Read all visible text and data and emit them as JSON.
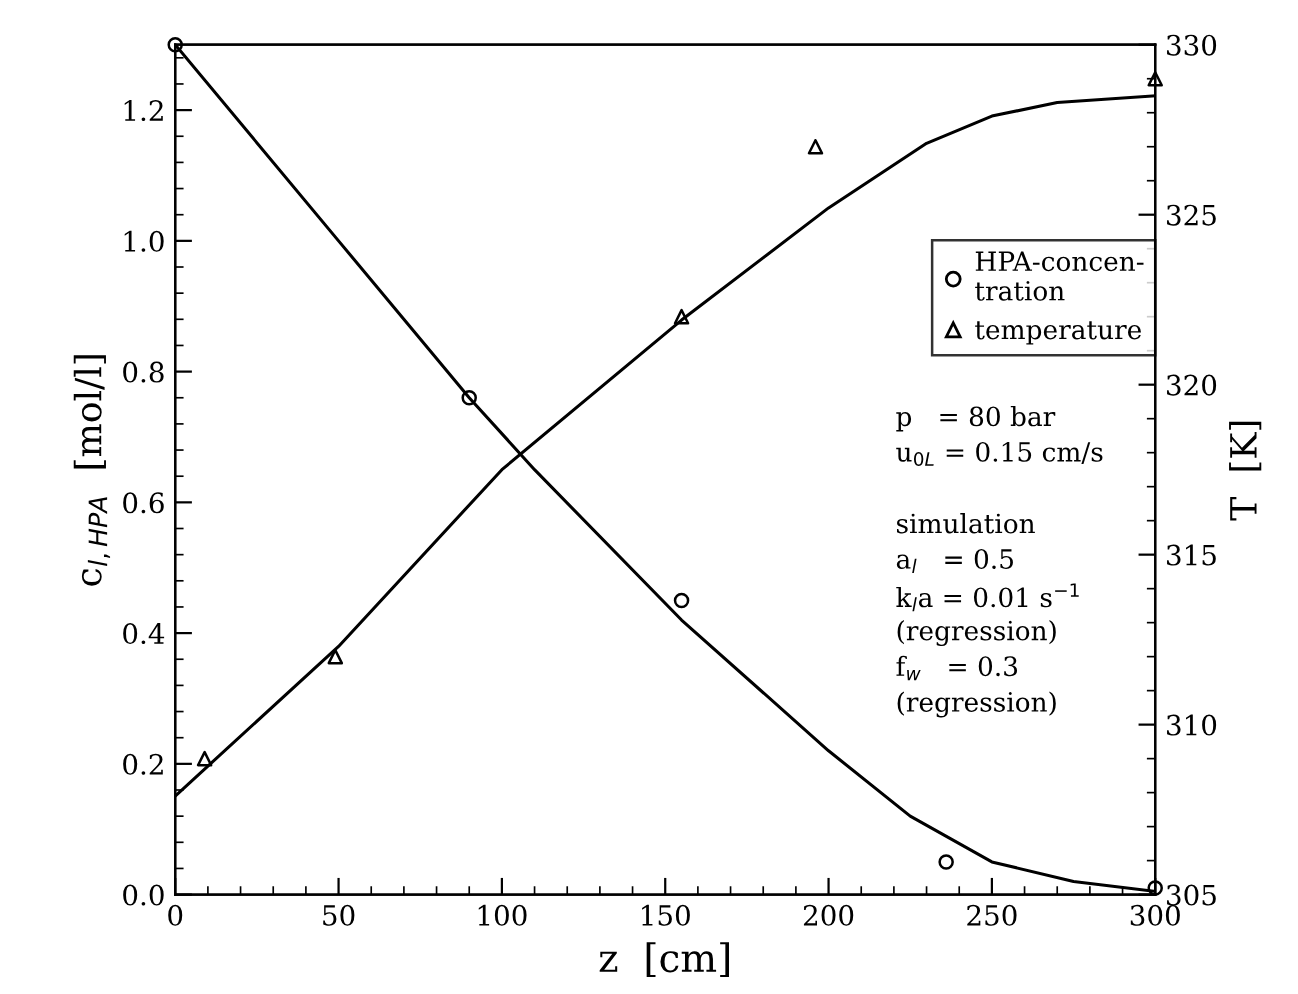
{
  "chart_data": {
    "type": "line",
    "xlabel": "z  [cm]",
    "ylabel": "c$_{l,HPA}$  [mol/l]",
    "y2label": "T  [K]",
    "xlim": [
      0,
      300
    ],
    "xticks": [
      0,
      50,
      100,
      150,
      200,
      250,
      300
    ],
    "ylim": [
      0,
      1.3
    ],
    "yticks": [
      {
        "value": 0,
        "label": "0.0"
      },
      0.2,
      0.4,
      0.6,
      0.8,
      {
        "value": 1,
        "label": "1.0"
      },
      1.2
    ],
    "y2lim": [
      305,
      330
    ],
    "y2ticks": [
      305,
      310,
      315,
      320,
      325,
      330
    ],
    "grid": false,
    "legend": "right",
    "series": [
      {
        "name": "HPA-concen-\ntration",
        "type": "scatter",
        "marker": "circle",
        "color": "#000000",
        "x": [
          0,
          90,
          155,
          236,
          300
        ],
        "values": [
          1.3,
          0.76,
          0.45,
          0.05,
          0.01
        ]
      },
      {
        "name": "temperature",
        "type": "scatter",
        "marker": "triangle",
        "color": "#000000",
        "axis": "y2",
        "x": [
          9,
          49,
          155,
          196,
          300
        ],
        "values": [
          309,
          312,
          322,
          327,
          329
        ]
      },
      {
        "color": "#000000",
        "x": [
          0,
          50,
          90,
          110,
          155,
          200,
          225,
          250,
          275,
          300
        ],
        "values": [
          1.3,
          1.0,
          0.76,
          0.65,
          0.42,
          0.22,
          0.12,
          0.05,
          0.02,
          0.005
        ]
      },
      {
        "color": "#000000",
        "axis": "y2",
        "x": [
          0,
          50,
          100,
          155,
          200,
          230,
          250,
          270,
          300
        ],
        "values": [
          307.9,
          312.3,
          317.5,
          321.9,
          325.2,
          327.1,
          327.9,
          328.3,
          328.5
        ]
      }
    ],
    "annotations": [
      "p   = 80 bar",
      "u$_{0L}$ = 0.15 cm/s",
      "simulation",
      "a$_{l}$   = 0.5",
      "k$_{l}$a = 0.01 s$^{−1}$",
      "(regression)",
      "f$_{w}$   = 0.3",
      "(regression)"
    ]
  }
}
